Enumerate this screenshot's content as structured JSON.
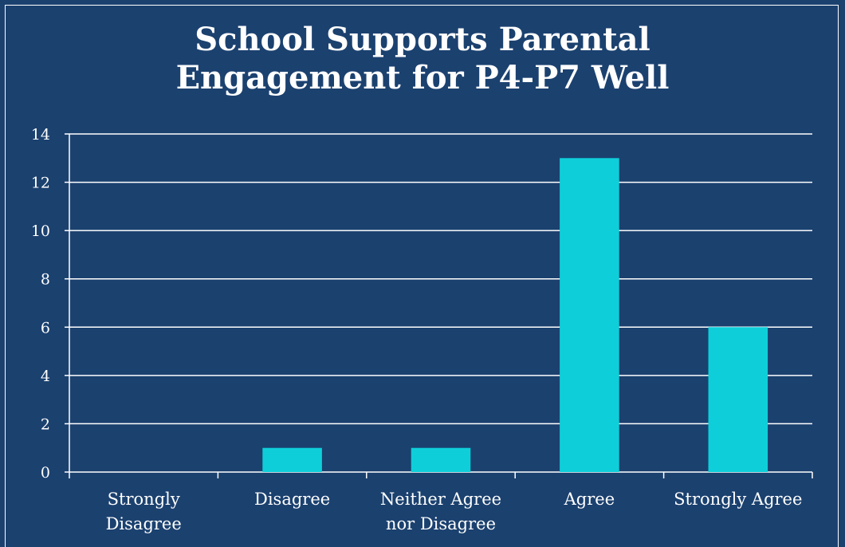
{
  "chart_data": {
    "type": "bar",
    "title_lines": [
      "School Supports Parental",
      "Engagement for P4-P7 Well"
    ],
    "categories": [
      [
        "Strongly",
        "Disagree"
      ],
      [
        "Disagree"
      ],
      [
        "Neither Agree",
        "nor Disagree"
      ],
      [
        "Agree"
      ],
      [
        "Strongly Agree"
      ]
    ],
    "values": [
      0,
      1,
      1,
      13,
      6
    ],
    "ylim": [
      0,
      14
    ],
    "yticks": [
      0,
      2,
      4,
      6,
      8,
      10,
      12,
      14
    ],
    "grid": true,
    "legend": "none",
    "colors": {
      "bar": "#0ecfd9",
      "background": "#1b416f",
      "grid": "#ffffff",
      "text": "#ffffff"
    }
  }
}
